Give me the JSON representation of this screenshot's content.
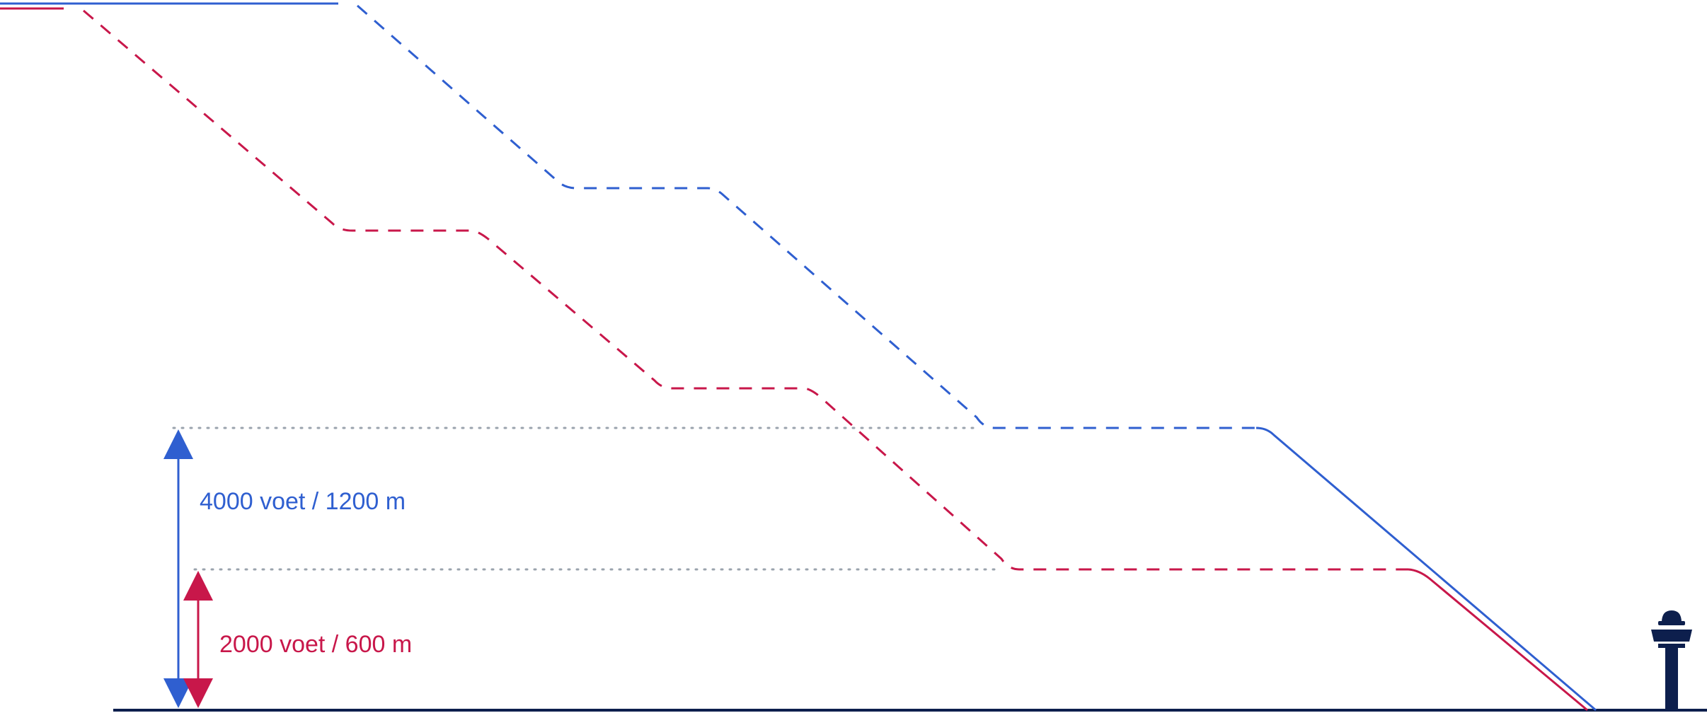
{
  "diagram": {
    "labels": {
      "high": "4000 voet / 1200 m",
      "low": "2000 voet / 600 m"
    },
    "colors": {
      "blue": "#2f5fd0",
      "red": "#c8174a",
      "navy": "#0d1f4d",
      "dotted": "#9aa3ad"
    },
    "icons": {
      "tower": "control-tower-icon"
    }
  }
}
